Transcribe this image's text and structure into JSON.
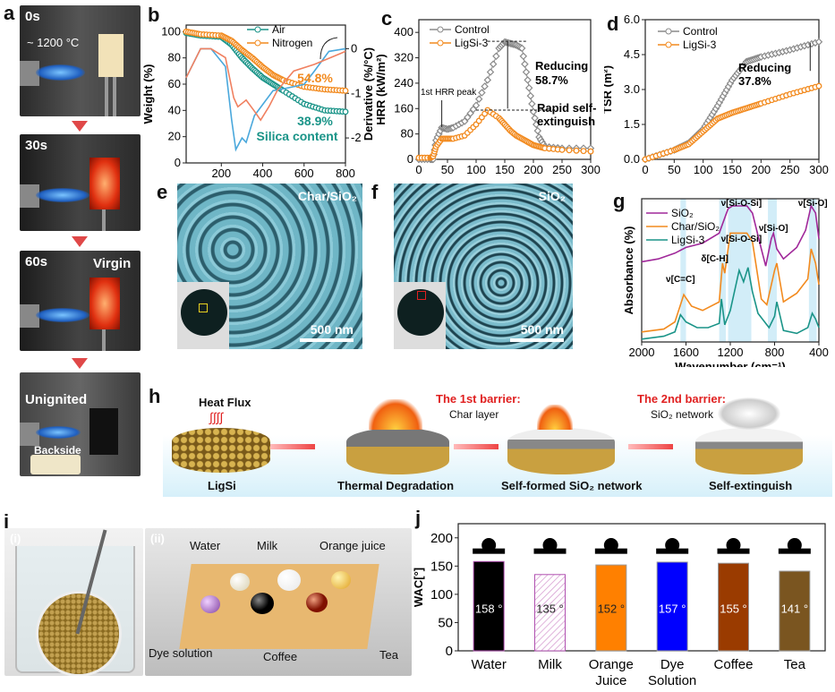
{
  "panel_labels": {
    "a": "a",
    "b": "b",
    "c": "c",
    "d": "d",
    "e": "e",
    "f": "f",
    "g": "g",
    "h": "h",
    "i": "i",
    "j": "j"
  },
  "panel_a": {
    "times": [
      "0s",
      "30s",
      "60s"
    ],
    "temperature": "~ 1200 °C",
    "virgin": "Virgin",
    "unignited": "Unignited",
    "backside": "Backside"
  },
  "panel_e": {
    "label": "Char/SiO₂",
    "scale": "500 nm"
  },
  "panel_f": {
    "label": "SiO₂",
    "scale": "500 nm"
  },
  "panel_h": {
    "heat_flux": "Heat Flux",
    "barrier1": "The 1st barrier:",
    "barrier2": "The 2nd barrier:",
    "char_layer": "Char layer",
    "sio2_network": "SiO₂ network",
    "stages": [
      "LigSi",
      "Thermal Degradation",
      "Self-formed SiO₂ network",
      "Self-extinguish"
    ]
  },
  "panel_i": {
    "sub1": "(i)",
    "sub2": "(ii)",
    "liquids": [
      "Water",
      "Milk",
      "Orange juice",
      "Dye solution",
      "Coffee",
      "Tea"
    ]
  },
  "chart_data": [
    {
      "id": "b",
      "type": "line",
      "xlabel": "Temperature (°C)",
      "ylabel": "Weight (%)",
      "y2label": "Derivative (%/°C)",
      "xlim": [
        30,
        800
      ],
      "ylim": [
        0,
        105
      ],
      "y2lim": [
        -2.56,
        0.53
      ],
      "xticks": [
        200,
        400,
        600,
        800
      ],
      "yticks": [
        0,
        20,
        40,
        60,
        80,
        100
      ],
      "y2ticks": [
        0,
        -1,
        -2
      ],
      "legend": "top-center",
      "series": [
        {
          "name": "Air",
          "axis": "left",
          "color": "#1a9488",
          "marker": "circle",
          "x": [
            30,
            100,
            200,
            250,
            300,
            350,
            400,
            450,
            500,
            600,
            700,
            800
          ],
          "y": [
            99,
            97,
            96,
            90,
            80,
            72,
            65,
            60,
            55,
            45,
            40,
            39
          ]
        },
        {
          "name": "Nitrogen",
          "axis": "left",
          "color": "#f28a1e",
          "marker": "circle",
          "x": [
            30,
            100,
            200,
            250,
            300,
            350,
            400,
            450,
            500,
            600,
            700,
            800
          ],
          "y": [
            100,
            98,
            97,
            93,
            86,
            80,
            73,
            67,
            63,
            58,
            56,
            55
          ]
        },
        {
          "axis": "right",
          "color": "#4aa8dc",
          "x": [
            30,
            100,
            150,
            220,
            250,
            270,
            300,
            320,
            360,
            450,
            500,
            600,
            650,
            720,
            800
          ],
          "y": [
            -0.65,
            0,
            0,
            -0.4,
            -1.6,
            -2.26,
            -2.0,
            -2.1,
            -1.5,
            -0.94,
            -0.9,
            -0.8,
            -0.5,
            -0.06,
            0
          ]
        },
        {
          "axis": "right",
          "color": "#f08060",
          "x": [
            30,
            100,
            150,
            220,
            260,
            280,
            320,
            360,
            390,
            430,
            470,
            550,
            650,
            800
          ],
          "y": [
            -0.65,
            0,
            0,
            -0.2,
            -1.1,
            -1.3,
            -1.15,
            -1.4,
            -1.6,
            -1.3,
            -0.94,
            -0.5,
            -0.35,
            -0.06
          ]
        }
      ],
      "annotations": [
        "54.8%",
        "38.9%",
        "Silica content"
      ]
    },
    {
      "id": "c",
      "type": "line",
      "xlabel": "Time (s)",
      "ylabel": "HRR (kW/m²)",
      "xlim": [
        0,
        300
      ],
      "ylim": [
        0,
        440
      ],
      "xticks": [
        0,
        50,
        100,
        150,
        200,
        250,
        300
      ],
      "yticks": [
        0,
        80,
        160,
        240,
        320,
        400
      ],
      "legend": "top-left",
      "series": [
        {
          "name": "Control",
          "color": "#8a8a8a",
          "marker": "diamond",
          "x": [
            0,
            20,
            25,
            30,
            40,
            50,
            60,
            80,
            100,
            120,
            140,
            150,
            160,
            170,
            180,
            190,
            200,
            210,
            220,
            250,
            300
          ],
          "y": [
            0,
            0,
            0,
            60,
            100,
            95,
            100,
            120,
            170,
            250,
            350,
            370,
            365,
            360,
            350,
            250,
            150,
            70,
            40,
            35,
            35
          ]
        },
        {
          "name": "LigSi-3",
          "color": "#f28a1e",
          "marker": "circle",
          "x": [
            0,
            20,
            25,
            30,
            40,
            50,
            60,
            80,
            100,
            120,
            140,
            150,
            160,
            170,
            180,
            190,
            200,
            210,
            220,
            250,
            300
          ],
          "y": [
            5,
            5,
            10,
            40,
            65,
            65,
            65,
            75,
            110,
            155,
            130,
            110,
            90,
            75,
            65,
            55,
            45,
            40,
            35,
            30,
            25
          ]
        }
      ],
      "annotations": [
        "1st HRR peak",
        "Reducing",
        "58.7%",
        "Rapid self-",
        "extinguish"
      ]
    },
    {
      "id": "d",
      "type": "line",
      "xlabel": "Time (s)",
      "ylabel": "TSR (m²)",
      "xlim": [
        0,
        300
      ],
      "ylim": [
        0,
        6
      ],
      "xticks": [
        0,
        50,
        100,
        150,
        200,
        250,
        300
      ],
      "yticks": [
        0.0,
        1.5,
        3.0,
        4.5,
        6.0
      ],
      "legend": "top-left",
      "series": [
        {
          "name": "Control",
          "color": "#8a8a8a",
          "marker": "diamond",
          "x": [
            0,
            50,
            75,
            100,
            125,
            150,
            175,
            200,
            250,
            300
          ],
          "y": [
            0,
            0.4,
            0.7,
            1.3,
            2.3,
            3.4,
            4.2,
            4.4,
            4.7,
            5.05
          ]
        },
        {
          "name": "LigSi-3",
          "color": "#f28a1e",
          "marker": "circle",
          "x": [
            0,
            50,
            75,
            100,
            125,
            150,
            175,
            200,
            250,
            300
          ],
          "y": [
            0,
            0.4,
            0.65,
            1.2,
            1.75,
            2.0,
            2.2,
            2.4,
            2.8,
            3.15
          ]
        }
      ],
      "annotations": [
        "Reducing",
        "37.8%"
      ]
    },
    {
      "id": "g",
      "type": "line",
      "xlabel": "Wavenumber (cm⁻¹)",
      "ylabel": "Absorbance (%)",
      "xlim": [
        2000,
        400
      ],
      "reversed_x": true,
      "xticks": [
        2000,
        1600,
        1200,
        800,
        400
      ],
      "legend": "top-left",
      "series": [
        {
          "name": "SiO₂",
          "color": "#a0289a",
          "x": [
            2000,
            1850,
            1700,
            1600,
            1450,
            1300,
            1220,
            1180,
            1050,
            1000,
            920,
            880,
            830,
            810,
            780,
            720,
            600,
            520,
            470,
            430,
            400
          ],
          "y": [
            0.56,
            0.58,
            0.62,
            0.66,
            0.69,
            0.76,
            0.93,
            0.95,
            0.95,
            0.9,
            0.65,
            0.53,
            0.72,
            0.76,
            0.65,
            0.58,
            0.66,
            0.78,
            0.95,
            0.9,
            0.72
          ]
        },
        {
          "name": "Char/SiO₂",
          "color": "#f28a1e",
          "x": [
            2000,
            1800,
            1700,
            1620,
            1550,
            1450,
            1300,
            1270,
            1250,
            1200,
            1050,
            1000,
            920,
            870,
            800,
            780,
            720,
            600,
            500,
            470,
            430,
            400
          ],
          "y": [
            0.07,
            0.09,
            0.14,
            0.33,
            0.25,
            0.22,
            0.28,
            0.55,
            0.48,
            0.76,
            0.76,
            0.7,
            0.3,
            0.26,
            0.5,
            0.55,
            0.28,
            0.34,
            0.44,
            0.65,
            0.55,
            0.4
          ]
        },
        {
          "name": "LigSi-3",
          "color": "#1a9488",
          "x": [
            2000,
            1800,
            1700,
            1650,
            1600,
            1500,
            1400,
            1300,
            1280,
            1250,
            1200,
            1120,
            1080,
            1040,
            1000,
            950,
            850,
            800,
            780,
            720,
            600,
            500,
            460,
            430,
            400
          ],
          "y": [
            0.02,
            0.04,
            0.07,
            0.19,
            0.14,
            0.1,
            0.1,
            0.13,
            0.3,
            0.12,
            0.22,
            0.5,
            0.42,
            0.52,
            0.35,
            0.2,
            0.1,
            0.18,
            0.28,
            0.08,
            0.06,
            0.1,
            0.2,
            0.16,
            0.1
          ]
        }
      ],
      "annotations": [
        "ν[Si-O-Si]",
        "ν[Si-O-Si]",
        "ν[Si-O]",
        "ν[Si-O]",
        "δ[C-H]",
        "ν[C=C]"
      ],
      "highlight_bands": [
        [
          1650,
          1600
        ],
        [
          1300,
          1240
        ],
        [
          1220,
          1010
        ],
        [
          860,
          780
        ],
        [
          490,
          420
        ]
      ]
    },
    {
      "id": "j",
      "type": "bar",
      "ylabel": "WAC[°]",
      "ylim": [
        0,
        225
      ],
      "yticks": [
        0,
        50,
        100,
        150,
        200
      ],
      "categories": [
        "Water",
        "Milk",
        "Orange\nJuice",
        "Dye\nSolution",
        "Coffee",
        "Tea"
      ],
      "values": [
        158,
        135,
        152,
        157,
        155,
        141
      ],
      "value_labels": [
        "158 °",
        "135 °",
        "152 °",
        "157 °",
        "155 °",
        "141 °"
      ],
      "colors": [
        "#000000",
        "#f4d4ee",
        "#ff8000",
        "#0000ff",
        "#9a3b00",
        "#7a5520"
      ],
      "label_colors": [
        "#ffffff",
        "#222222",
        "#222222",
        "#ffffff",
        "#ffffff",
        "#ffffff"
      ]
    }
  ]
}
